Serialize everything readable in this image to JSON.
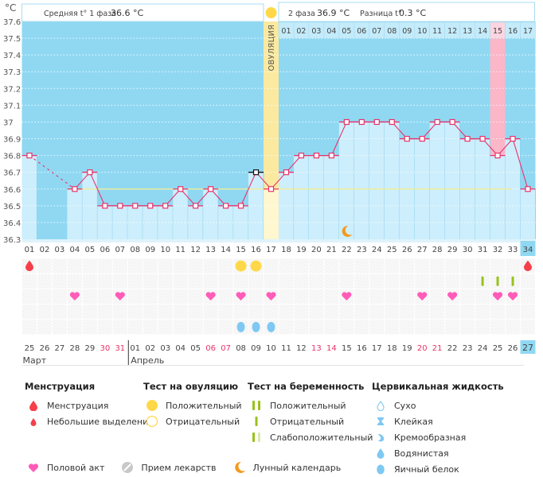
{
  "header": {
    "unit_label": "°C",
    "phase1_label": "Средняя t° 1 фаза",
    "phase1_value": "36.6 °C",
    "phase2_label": "2 фаза",
    "phase2_value": "36.9 °C",
    "diff_label": "Разница t°",
    "diff_value": "0.3 °C",
    "ovulation_label": "ОВУЛЯЦИЯ"
  },
  "colors": {
    "sky": "#90d8f2",
    "bar": "#cdeefc",
    "line": "#e8336a",
    "ovulation_band": "#fbe9a0",
    "highlight_band": "#fbb6c8",
    "avg_line": "#f4ec8c",
    "heart": "#ff5cb8",
    "drop_red": "#f5404a",
    "drop_blue": "#7ec8f2",
    "test_green": "#99c21c",
    "moon": "#f39a1e",
    "sun": "#ffd84a"
  },
  "chart_data": {
    "type": "line",
    "title": "",
    "ylabel": "°C",
    "ylim": [
      36.3,
      37.6
    ],
    "yticks": [
      "37.6",
      "37.5",
      "37.4",
      "37.3",
      "37.2",
      "37.1",
      "37",
      "36.9",
      "36.8",
      "36.7",
      "36.6",
      "36.5",
      "36.4",
      "36.3"
    ],
    "cycle_days": [
      "01",
      "02",
      "03",
      "04",
      "05",
      "06",
      "07",
      "08",
      "09",
      "10",
      "11",
      "12",
      "13",
      "14",
      "15",
      "16",
      "17",
      "18",
      "19",
      "20",
      "21",
      "22",
      "23",
      "24",
      "25",
      "26",
      "27",
      "28",
      "29",
      "30",
      "31",
      "32",
      "33",
      "34"
    ],
    "phase2_days": [
      "01",
      "02",
      "03",
      "04",
      "05",
      "06",
      "07",
      "08",
      "09",
      "10",
      "11",
      "12",
      "13",
      "14",
      "15",
      "16",
      "17"
    ],
    "temperatures": [
      36.8,
      null,
      null,
      36.6,
      36.7,
      36.5,
      36.5,
      36.5,
      36.5,
      36.5,
      36.6,
      36.5,
      36.6,
      36.5,
      36.5,
      36.7,
      36.6,
      36.7,
      36.8,
      36.8,
      36.8,
      37.0,
      37.0,
      37.0,
      37.0,
      36.9,
      36.9,
      37.0,
      37.0,
      36.9,
      36.9,
      36.8,
      36.9,
      36.6
    ],
    "phase1_average": 36.6,
    "ovulation_day": 17,
    "highlighted_day": 32,
    "current_day": 34,
    "dates": [
      "25",
      "26",
      "27",
      "28",
      "29",
      "30",
      "31",
      "01",
      "02",
      "03",
      "04",
      "05",
      "06",
      "07",
      "08",
      "09",
      "10",
      "11",
      "12",
      "13",
      "14",
      "15",
      "16",
      "17",
      "18",
      "19",
      "20",
      "21",
      "22",
      "23",
      "24",
      "25",
      "26",
      "27"
    ],
    "weekend_indices": [
      5,
      6,
      12,
      13,
      19,
      20,
      26,
      27
    ],
    "months": [
      {
        "label": "Март",
        "start_index": 0
      },
      {
        "label": "Апрель",
        "start_index": 7
      }
    ],
    "markers": {
      "menstruation": [
        1,
        34
      ],
      "ovulation_test_positive": [
        15,
        16
      ],
      "pregnancy_test_negative": [
        31,
        32,
        33
      ],
      "intercourse": [
        4,
        7,
        13,
        15,
        17,
        22,
        27,
        29,
        32,
        33
      ],
      "cervical_egg_white": [
        15,
        16,
        17
      ],
      "moon": [
        22
      ]
    }
  },
  "legend": {
    "menstruation": {
      "title": "Менструация",
      "items": [
        {
          "icon": "drop-large-icon",
          "label": "Менструация"
        },
        {
          "icon": "drop-small-icon",
          "label": "Небольшие выделения"
        }
      ]
    },
    "ovulation_test": {
      "title": "Тест на овуляцию",
      "items": [
        {
          "icon": "circle-filled-icon",
          "label": "Положительный"
        },
        {
          "icon": "circle-outline-icon",
          "label": "Отрицательный"
        }
      ]
    },
    "pregnancy_test": {
      "title": "Тест на беременность",
      "items": [
        {
          "icon": "two-lines-icon",
          "label": "Положительный"
        },
        {
          "icon": "one-line-icon",
          "label": "Отрицательный"
        },
        {
          "icon": "faint-line-icon",
          "label": "Слабоположительный"
        }
      ]
    },
    "cervical": {
      "title": "Цервикальная жидкость",
      "items": [
        {
          "icon": "drop-outline-icon",
          "label": "Сухо"
        },
        {
          "icon": "hourglass-icon",
          "label": "Клейкая"
        },
        {
          "icon": "cream-icon",
          "label": "Кремообразная"
        },
        {
          "icon": "drop-blue-icon",
          "label": "Водянистая"
        },
        {
          "icon": "egg-icon",
          "label": "Яичный белок"
        }
      ]
    },
    "bottom": [
      {
        "icon": "heart-icon",
        "label": "Половой акт"
      },
      {
        "icon": "pill-icon",
        "label": "Прием лекарств"
      },
      {
        "icon": "moon-icon",
        "label": "Лунный календарь"
      }
    ]
  }
}
